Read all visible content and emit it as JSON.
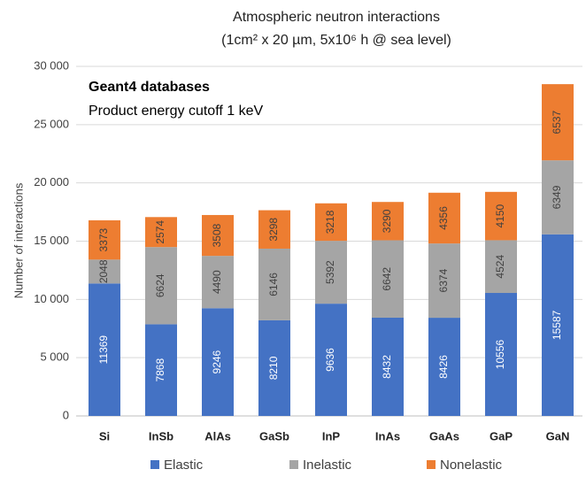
{
  "chart_data": {
    "type": "stacked_bar",
    "title": [
      "Atmospheric neutron interactions",
      "(1cm² x 20 µm, 5x10⁶ h @ sea level)"
    ],
    "annotations": [
      "Geant4 databases",
      "Product energy cutoff 1 keV"
    ],
    "y_label": "Number of interactions",
    "categories": [
      "Si",
      "InSb",
      "AlAs",
      "GaSb",
      "InP",
      "InAs",
      "GaAs",
      "GaP",
      "GaN"
    ],
    "series": [
      {
        "name": "Elastic",
        "color": "#4472c4",
        "values": [
          11369,
          7868,
          9246,
          8210,
          9636,
          8432,
          8426,
          10556,
          15587
        ]
      },
      {
        "name": "Inelastic",
        "color": "#a5a5a5",
        "values": [
          2048,
          6624,
          4490,
          6146,
          5392,
          6642,
          6374,
          4524,
          6349
        ]
      },
      {
        "name": "Nonelastic",
        "color": "#ed7d31",
        "values": [
          3373,
          2574,
          3508,
          3298,
          3218,
          3290,
          4356,
          4150,
          6537
        ]
      }
    ],
    "ylim": [
      0,
      30000
    ],
    "yticks": [
      0,
      {
        "value": 5000,
        "label": "5 000"
      },
      {
        "value": 10000,
        "label": "10 000"
      },
      {
        "value": 15000,
        "label": "15 000"
      },
      {
        "value": 20000,
        "label": "20 000"
      },
      {
        "value": 25000,
        "label": "25 000"
      },
      {
        "value": 30000,
        "label": "30 000"
      }
    ],
    "grid": true
  }
}
